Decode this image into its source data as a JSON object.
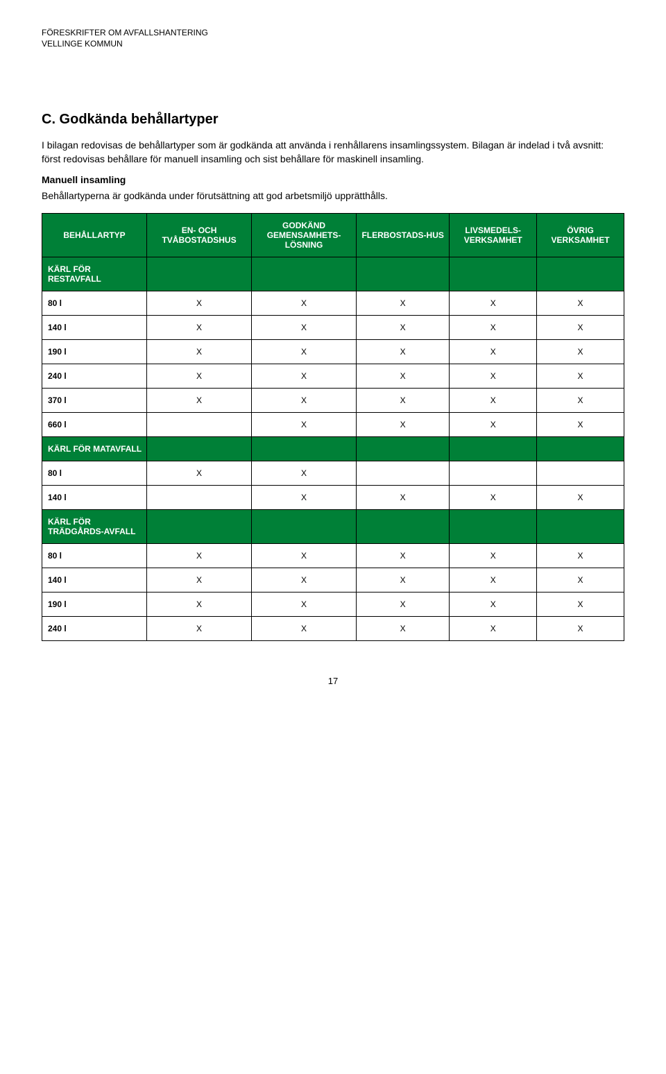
{
  "header": {
    "line1": "FÖRESKRIFTER OM AVFALLSHANTERING",
    "line2": "VELLINGE KOMMUN"
  },
  "title": "C. Godkända behållartyper",
  "paragraph1": "I bilagan redovisas de behållartyper som är godkända att använda i renhållarens insamlingssystem. Bilagan är indelad i två avsnitt: först redovisas behållare för manuell insamling och sist behållare för maskinell insamling.",
  "subheading": "Manuell insamling",
  "paragraph2": "Behållartyperna är godkända under förutsättning att god arbetsmiljö upprätthålls.",
  "table": {
    "columns": [
      "BEHÅLLARTYP",
      "EN- OCH TVÅBOSTADSHUS",
      "GODKÄND GEMENSAMHETS-LÖSNING",
      "FLERBOSTADS-HUS",
      "LIVSMEDELS-VERKSAMHET",
      "ÖVRIG VERKSAMHET"
    ],
    "header_bg": "#008037",
    "header_fg": "#ffffff",
    "cell_border": "#000000",
    "mark": "X",
    "sections": [
      {
        "title": "KÄRL FÖR RESTAVFALL",
        "rows": [
          {
            "label": "80 l",
            "cells": [
              "X",
              "X",
              "X",
              "X",
              "X"
            ]
          },
          {
            "label": "140 l",
            "cells": [
              "X",
              "X",
              "X",
              "X",
              "X"
            ]
          },
          {
            "label": "190 l",
            "cells": [
              "X",
              "X",
              "X",
              "X",
              "X"
            ]
          },
          {
            "label": "240 l",
            "cells": [
              "X",
              "X",
              "X",
              "X",
              "X"
            ]
          },
          {
            "label": "370 l",
            "cells": [
              "X",
              "X",
              "X",
              "X",
              "X"
            ]
          },
          {
            "label": "660 l",
            "cells": [
              "",
              "X",
              "X",
              "X",
              "X"
            ]
          }
        ]
      },
      {
        "title": "KÄRL FÖR MATAVFALL",
        "rows": [
          {
            "label": "80 l",
            "cells": [
              "X",
              "X",
              "",
              "",
              ""
            ]
          },
          {
            "label": "140 l",
            "cells": [
              "",
              "X",
              "X",
              "X",
              "X"
            ]
          }
        ]
      },
      {
        "title": "KÄRL FÖR TRÄDGÅRDS-AVFALL",
        "rows": [
          {
            "label": "80 l",
            "cells": [
              "X",
              "X",
              "X",
              "X",
              "X"
            ]
          },
          {
            "label": "140 l",
            "cells": [
              "X",
              "X",
              "X",
              "X",
              "X"
            ]
          },
          {
            "label": "190 l",
            "cells": [
              "X",
              "X",
              "X",
              "X",
              "X"
            ]
          },
          {
            "label": "240 l",
            "cells": [
              "X",
              "X",
              "X",
              "X",
              "X"
            ]
          }
        ]
      }
    ]
  },
  "page_number": "17"
}
